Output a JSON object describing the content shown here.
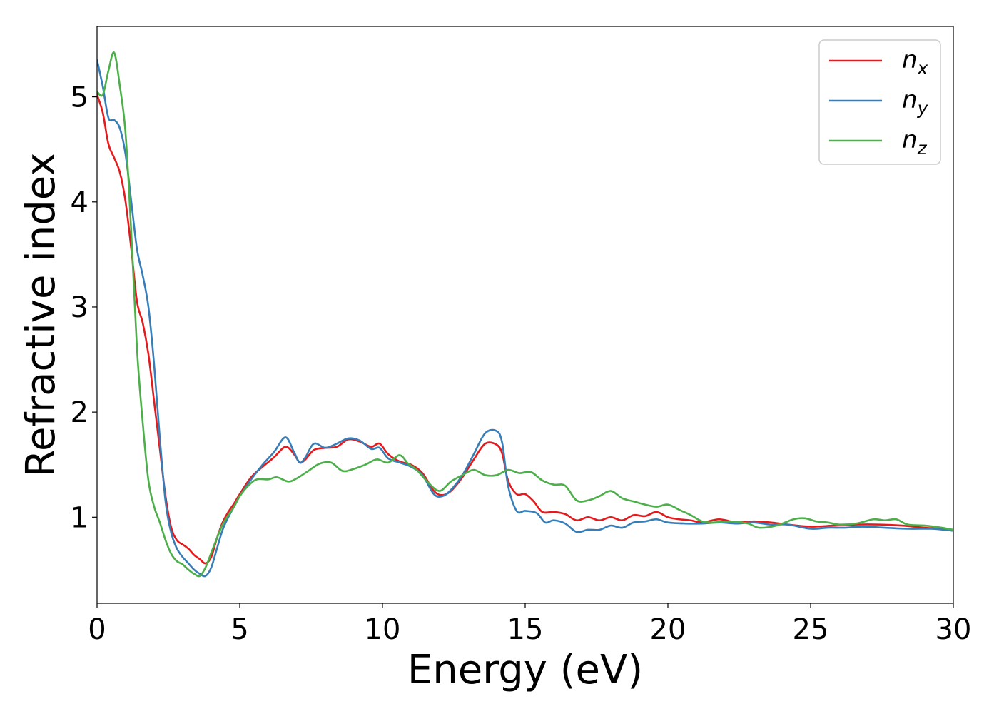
{
  "chart_data": {
    "type": "line",
    "xlabel": "Energy (eV)",
    "ylabel": "Refractive index",
    "xlim": [
      0,
      30
    ],
    "ylim": [
      0.18,
      5.67
    ],
    "xticks": [
      "0",
      "5",
      "10",
      "15",
      "20",
      "25",
      "30"
    ],
    "yticks": [
      "1",
      "2",
      "3",
      "4",
      "5"
    ],
    "grid": false,
    "legend_position": "top-right",
    "series": [
      {
        "name": "n",
        "subscript": "x",
        "color": "#e41a1c",
        "points": [
          [
            0,
            5.02
          ],
          [
            0.2,
            4.85
          ],
          [
            0.4,
            4.55
          ],
          [
            0.6,
            4.42
          ],
          [
            0.8,
            4.28
          ],
          [
            1.0,
            4.0
          ],
          [
            1.2,
            3.55
          ],
          [
            1.4,
            3.05
          ],
          [
            1.6,
            2.85
          ],
          [
            1.8,
            2.55
          ],
          [
            2.0,
            2.1
          ],
          [
            2.2,
            1.65
          ],
          [
            2.4,
            1.2
          ],
          [
            2.6,
            0.9
          ],
          [
            2.8,
            0.78
          ],
          [
            3.0,
            0.74
          ],
          [
            3.2,
            0.7
          ],
          [
            3.4,
            0.64
          ],
          [
            3.6,
            0.6
          ],
          [
            3.8,
            0.56
          ],
          [
            4.0,
            0.62
          ],
          [
            4.2,
            0.8
          ],
          [
            4.4,
            0.95
          ],
          [
            4.6,
            1.05
          ],
          [
            4.8,
            1.13
          ],
          [
            5.0,
            1.22
          ],
          [
            5.4,
            1.38
          ],
          [
            5.8,
            1.48
          ],
          [
            6.2,
            1.57
          ],
          [
            6.6,
            1.67
          ],
          [
            6.9,
            1.6
          ],
          [
            7.1,
            1.52
          ],
          [
            7.3,
            1.55
          ],
          [
            7.6,
            1.64
          ],
          [
            8.0,
            1.66
          ],
          [
            8.4,
            1.67
          ],
          [
            8.8,
            1.74
          ],
          [
            9.2,
            1.72
          ],
          [
            9.6,
            1.67
          ],
          [
            9.9,
            1.7
          ],
          [
            10.2,
            1.6
          ],
          [
            10.6,
            1.53
          ],
          [
            11.0,
            1.5
          ],
          [
            11.4,
            1.42
          ],
          [
            11.8,
            1.25
          ],
          [
            12.1,
            1.21
          ],
          [
            12.4,
            1.25
          ],
          [
            12.8,
            1.38
          ],
          [
            13.2,
            1.55
          ],
          [
            13.6,
            1.7
          ],
          [
            14.0,
            1.69
          ],
          [
            14.2,
            1.6
          ],
          [
            14.4,
            1.35
          ],
          [
            14.7,
            1.22
          ],
          [
            15.0,
            1.22
          ],
          [
            15.3,
            1.15
          ],
          [
            15.6,
            1.05
          ],
          [
            16.0,
            1.05
          ],
          [
            16.4,
            1.03
          ],
          [
            16.8,
            0.97
          ],
          [
            17.2,
            1.0
          ],
          [
            17.6,
            0.97
          ],
          [
            18.0,
            1.0
          ],
          [
            18.4,
            0.97
          ],
          [
            18.8,
            1.02
          ],
          [
            19.2,
            1.01
          ],
          [
            19.6,
            1.05
          ],
          [
            20.0,
            1.0
          ],
          [
            20.4,
            0.98
          ],
          [
            20.8,
            0.97
          ],
          [
            21.2,
            0.95
          ],
          [
            21.8,
            0.98
          ],
          [
            22.4,
            0.95
          ],
          [
            23.0,
            0.96
          ],
          [
            23.6,
            0.95
          ],
          [
            24.2,
            0.93
          ],
          [
            25.0,
            0.91
          ],
          [
            25.8,
            0.92
          ],
          [
            26.6,
            0.93
          ],
          [
            27.4,
            0.93
          ],
          [
            28.2,
            0.92
          ],
          [
            29.0,
            0.9
          ],
          [
            29.6,
            0.89
          ],
          [
            30.0,
            0.88
          ]
        ]
      },
      {
        "name": "n",
        "subscript": "y",
        "color": "#377eb8",
        "points": [
          [
            0,
            5.35
          ],
          [
            0.2,
            5.1
          ],
          [
            0.4,
            4.8
          ],
          [
            0.6,
            4.78
          ],
          [
            0.8,
            4.7
          ],
          [
            1.0,
            4.45
          ],
          [
            1.2,
            4.0
          ],
          [
            1.4,
            3.55
          ],
          [
            1.6,
            3.3
          ],
          [
            1.8,
            3.0
          ],
          [
            2.0,
            2.45
          ],
          [
            2.2,
            1.75
          ],
          [
            2.4,
            1.15
          ],
          [
            2.6,
            0.85
          ],
          [
            2.8,
            0.7
          ],
          [
            3.0,
            0.62
          ],
          [
            3.2,
            0.56
          ],
          [
            3.4,
            0.5
          ],
          [
            3.6,
            0.46
          ],
          [
            3.8,
            0.44
          ],
          [
            4.0,
            0.52
          ],
          [
            4.2,
            0.7
          ],
          [
            4.4,
            0.88
          ],
          [
            4.6,
            1.0
          ],
          [
            4.8,
            1.1
          ],
          [
            5.0,
            1.2
          ],
          [
            5.4,
            1.36
          ],
          [
            5.8,
            1.5
          ],
          [
            6.2,
            1.62
          ],
          [
            6.6,
            1.76
          ],
          [
            6.9,
            1.62
          ],
          [
            7.1,
            1.52
          ],
          [
            7.3,
            1.57
          ],
          [
            7.6,
            1.7
          ],
          [
            8.0,
            1.66
          ],
          [
            8.4,
            1.7
          ],
          [
            8.8,
            1.75
          ],
          [
            9.2,
            1.73
          ],
          [
            9.6,
            1.65
          ],
          [
            9.9,
            1.66
          ],
          [
            10.2,
            1.56
          ],
          [
            10.6,
            1.52
          ],
          [
            11.0,
            1.48
          ],
          [
            11.4,
            1.4
          ],
          [
            11.8,
            1.22
          ],
          [
            12.1,
            1.2
          ],
          [
            12.4,
            1.26
          ],
          [
            12.8,
            1.4
          ],
          [
            13.2,
            1.6
          ],
          [
            13.6,
            1.8
          ],
          [
            14.0,
            1.82
          ],
          [
            14.2,
            1.7
          ],
          [
            14.4,
            1.3
          ],
          [
            14.7,
            1.06
          ],
          [
            15.0,
            1.06
          ],
          [
            15.4,
            1.04
          ],
          [
            15.7,
            0.95
          ],
          [
            16.0,
            0.97
          ],
          [
            16.4,
            0.94
          ],
          [
            16.8,
            0.86
          ],
          [
            17.2,
            0.88
          ],
          [
            17.6,
            0.88
          ],
          [
            18.0,
            0.92
          ],
          [
            18.4,
            0.9
          ],
          [
            18.8,
            0.95
          ],
          [
            19.2,
            0.96
          ],
          [
            19.6,
            0.98
          ],
          [
            20.0,
            0.95
          ],
          [
            20.6,
            0.94
          ],
          [
            21.2,
            0.94
          ],
          [
            21.8,
            0.95
          ],
          [
            22.4,
            0.94
          ],
          [
            23.0,
            0.95
          ],
          [
            23.6,
            0.93
          ],
          [
            24.2,
            0.93
          ],
          [
            25.0,
            0.89
          ],
          [
            25.6,
            0.9
          ],
          [
            26.2,
            0.9
          ],
          [
            26.8,
            0.91
          ],
          [
            27.6,
            0.9
          ],
          [
            28.4,
            0.89
          ],
          [
            29.2,
            0.89
          ],
          [
            29.7,
            0.88
          ],
          [
            30.0,
            0.87
          ]
        ]
      },
      {
        "name": "n",
        "subscript": "z",
        "color": "#4daf4a",
        "points": [
          [
            0,
            5.05
          ],
          [
            0.2,
            5.02
          ],
          [
            0.4,
            5.25
          ],
          [
            0.6,
            5.42
          ],
          [
            0.8,
            5.1
          ],
          [
            1.0,
            4.65
          ],
          [
            1.2,
            3.7
          ],
          [
            1.4,
            2.6
          ],
          [
            1.6,
            1.9
          ],
          [
            1.8,
            1.35
          ],
          [
            2.0,
            1.1
          ],
          [
            2.2,
            0.95
          ],
          [
            2.4,
            0.78
          ],
          [
            2.6,
            0.65
          ],
          [
            2.8,
            0.58
          ],
          [
            3.0,
            0.55
          ],
          [
            3.2,
            0.5
          ],
          [
            3.4,
            0.46
          ],
          [
            3.6,
            0.44
          ],
          [
            3.8,
            0.52
          ],
          [
            4.0,
            0.66
          ],
          [
            4.2,
            0.8
          ],
          [
            4.4,
            0.93
          ],
          [
            4.6,
            1.02
          ],
          [
            4.8,
            1.1
          ],
          [
            5.0,
            1.2
          ],
          [
            5.3,
            1.3
          ],
          [
            5.6,
            1.36
          ],
          [
            6.0,
            1.36
          ],
          [
            6.3,
            1.38
          ],
          [
            6.7,
            1.34
          ],
          [
            7.0,
            1.37
          ],
          [
            7.4,
            1.44
          ],
          [
            7.8,
            1.51
          ],
          [
            8.2,
            1.52
          ],
          [
            8.6,
            1.44
          ],
          [
            9.0,
            1.46
          ],
          [
            9.4,
            1.5
          ],
          [
            9.8,
            1.55
          ],
          [
            10.2,
            1.52
          ],
          [
            10.6,
            1.59
          ],
          [
            10.9,
            1.51
          ],
          [
            11.2,
            1.45
          ],
          [
            11.6,
            1.33
          ],
          [
            12.0,
            1.25
          ],
          [
            12.4,
            1.34
          ],
          [
            12.8,
            1.4
          ],
          [
            13.2,
            1.45
          ],
          [
            13.6,
            1.4
          ],
          [
            14.0,
            1.4
          ],
          [
            14.4,
            1.45
          ],
          [
            14.8,
            1.42
          ],
          [
            15.2,
            1.43
          ],
          [
            15.6,
            1.35
          ],
          [
            16.0,
            1.31
          ],
          [
            16.4,
            1.3
          ],
          [
            16.8,
            1.16
          ],
          [
            17.2,
            1.16
          ],
          [
            17.6,
            1.2
          ],
          [
            18.0,
            1.25
          ],
          [
            18.4,
            1.18
          ],
          [
            18.8,
            1.15
          ],
          [
            19.2,
            1.12
          ],
          [
            19.6,
            1.1
          ],
          [
            20.0,
            1.12
          ],
          [
            20.4,
            1.07
          ],
          [
            20.8,
            1.02
          ],
          [
            21.2,
            0.96
          ],
          [
            21.6,
            0.95
          ],
          [
            22.2,
            0.96
          ],
          [
            22.8,
            0.94
          ],
          [
            23.2,
            0.9
          ],
          [
            23.8,
            0.92
          ],
          [
            24.4,
            0.98
          ],
          [
            24.8,
            0.99
          ],
          [
            25.2,
            0.96
          ],
          [
            25.6,
            0.95
          ],
          [
            26.0,
            0.93
          ],
          [
            26.6,
            0.94
          ],
          [
            27.2,
            0.98
          ],
          [
            27.6,
            0.97
          ],
          [
            28.0,
            0.98
          ],
          [
            28.4,
            0.93
          ],
          [
            29.0,
            0.92
          ],
          [
            29.6,
            0.9
          ],
          [
            30.0,
            0.88
          ]
        ]
      }
    ]
  }
}
